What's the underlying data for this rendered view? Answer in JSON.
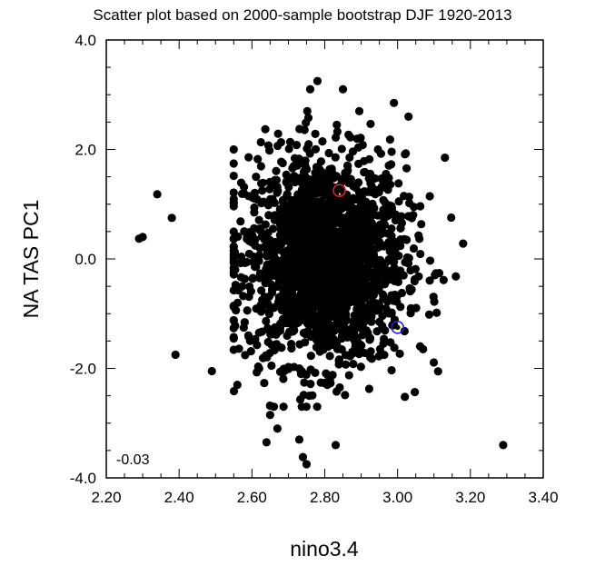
{
  "chart_data": {
    "type": "scatter",
    "title": "Scatter plot based on 2000-sample bootstrap DJF 1920-2013",
    "xlabel": "nino3.4",
    "ylabel": "NA TAS PC1",
    "xlim": [
      2.2,
      3.4
    ],
    "ylim": [
      -4.0,
      4.0
    ],
    "xticks": [
      "2.20",
      "2.40",
      "2.60",
      "2.80",
      "3.00",
      "3.20",
      "3.40"
    ],
    "yticks": [
      "-4.0",
      "-2.0",
      "0.0",
      "2.0",
      "4.0"
    ],
    "annotation": "-0.03",
    "grid": false,
    "legend": "none",
    "sample_size": 2000,
    "center": {
      "x": 2.8,
      "y": 0.0
    },
    "spread": {
      "x": 0.11,
      "y": 0.95
    },
    "outliers": [
      {
        "x": 2.29,
        "y": 0.37
      },
      {
        "x": 2.34,
        "y": 1.18
      },
      {
        "x": 2.38,
        "y": 0.75
      },
      {
        "x": 2.39,
        "y": -1.75
      },
      {
        "x": 2.49,
        "y": -2.05
      },
      {
        "x": 2.56,
        "y": -2.3
      },
      {
        "x": 2.64,
        "y": -3.35
      },
      {
        "x": 2.65,
        "y": -2.85
      },
      {
        "x": 2.67,
        "y": -3.1
      },
      {
        "x": 2.73,
        "y": -3.3
      },
      {
        "x": 2.74,
        "y": -3.62
      },
      {
        "x": 2.75,
        "y": -3.75
      },
      {
        "x": 2.78,
        "y": 3.25
      },
      {
        "x": 2.76,
        "y": 3.1
      },
      {
        "x": 2.83,
        "y": -3.4
      },
      {
        "x": 3.29,
        "y": -3.4
      },
      {
        "x": 3.18,
        "y": 0.28
      },
      {
        "x": 3.16,
        "y": -0.32
      },
      {
        "x": 3.13,
        "y": 1.85
      },
      {
        "x": 3.07,
        "y": -1.65
      },
      {
        "x": 3.02,
        "y": -2.52
      },
      {
        "x": 2.99,
        "y": 2.85
      },
      {
        "x": 3.03,
        "y": 2.6
      },
      {
        "x": 2.85,
        "y": 3.1
      },
      {
        "x": 2.3,
        "y": 0.4
      }
    ],
    "highlight_points": [
      {
        "x": 2.84,
        "y": 1.25,
        "color": "#e02020"
      },
      {
        "x": 3.0,
        "y": -1.25,
        "color": "#2020d0"
      }
    ],
    "marker_color": "#000000"
  }
}
